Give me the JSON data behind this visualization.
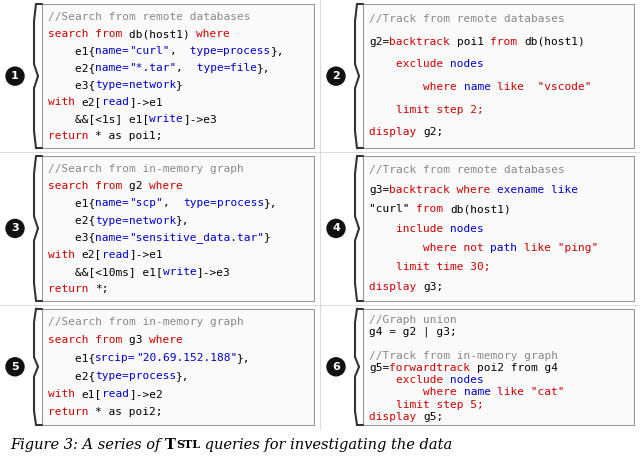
{
  "bg_color": "#ffffff",
  "figsize": [
    6.4,
    4.57
  ],
  "dpi": 100,
  "panels": [
    {
      "id": "1",
      "col": 0,
      "row": 0,
      "lines": [
        [
          {
            "t": "//Search from remote databases",
            "c": "#888888"
          }
        ],
        [
          {
            "t": "search from ",
            "c": "#cc0000"
          },
          {
            "t": "db(host1) ",
            "c": "#000000"
          },
          {
            "t": "where",
            "c": "#cc0000"
          }
        ],
        [
          {
            "t": "    e1{",
            "c": "#000000"
          },
          {
            "t": "name=",
            "c": "#0000cc"
          },
          {
            "t": "\"curl\"",
            "c": "#0000cc"
          },
          {
            "t": ", ",
            "c": "#000000"
          },
          {
            "t": " type=",
            "c": "#0000cc"
          },
          {
            "t": "process",
            "c": "#0000cc"
          },
          {
            "t": "},",
            "c": "#000000"
          }
        ],
        [
          {
            "t": "    e2{",
            "c": "#000000"
          },
          {
            "t": "name=",
            "c": "#0000cc"
          },
          {
            "t": "\"*.tar\"",
            "c": "#0000cc"
          },
          {
            "t": ", ",
            "c": "#000000"
          },
          {
            "t": " type=",
            "c": "#0000cc"
          },
          {
            "t": "file",
            "c": "#0000cc"
          },
          {
            "t": "},",
            "c": "#000000"
          }
        ],
        [
          {
            "t": "    e3{",
            "c": "#000000"
          },
          {
            "t": "type=",
            "c": "#0000cc"
          },
          {
            "t": "network",
            "c": "#0000cc"
          },
          {
            "t": "}",
            "c": "#000000"
          }
        ],
        [
          {
            "t": "with ",
            "c": "#cc0000"
          },
          {
            "t": "e2[",
            "c": "#000000"
          },
          {
            "t": "read",
            "c": "#0000cc"
          },
          {
            "t": "]->e1",
            "c": "#000000"
          }
        ],
        [
          {
            "t": "    &&[<1s] e1[",
            "c": "#000000"
          },
          {
            "t": "write",
            "c": "#0000cc"
          },
          {
            "t": "]->e3",
            "c": "#000000"
          }
        ],
        [
          {
            "t": "return ",
            "c": "#cc0000"
          },
          {
            "t": "* as poi1;",
            "c": "#000000"
          }
        ]
      ]
    },
    {
      "id": "2",
      "col": 1,
      "row": 0,
      "lines": [
        [
          {
            "t": "//Track from remote databases",
            "c": "#888888"
          }
        ],
        [
          {
            "t": "g2=",
            "c": "#000000"
          },
          {
            "t": "backtrack ",
            "c": "#cc0000"
          },
          {
            "t": "poi1 ",
            "c": "#000000"
          },
          {
            "t": "from ",
            "c": "#cc0000"
          },
          {
            "t": "db(host1)",
            "c": "#000000"
          }
        ],
        [
          {
            "t": "    ",
            "c": "#000000"
          },
          {
            "t": "exclude ",
            "c": "#cc0000"
          },
          {
            "t": "nodes",
            "c": "#0000cc"
          }
        ],
        [
          {
            "t": "        ",
            "c": "#000000"
          },
          {
            "t": "where ",
            "c": "#cc0000"
          },
          {
            "t": "name ",
            "c": "#0000cc"
          },
          {
            "t": "like  \"vscode\"",
            "c": "#cc0000"
          }
        ],
        [
          {
            "t": "    ",
            "c": "#000000"
          },
          {
            "t": "limit step 2;",
            "c": "#cc0000"
          }
        ],
        [
          {
            "t": "display ",
            "c": "#cc0000"
          },
          {
            "t": "g2;",
            "c": "#000000"
          }
        ]
      ]
    },
    {
      "id": "3",
      "col": 0,
      "row": 1,
      "lines": [
        [
          {
            "t": "//Search from in-memory graph",
            "c": "#888888"
          }
        ],
        [
          {
            "t": "search from ",
            "c": "#cc0000"
          },
          {
            "t": "g2 ",
            "c": "#000000"
          },
          {
            "t": "where",
            "c": "#cc0000"
          }
        ],
        [
          {
            "t": "    e1{",
            "c": "#000000"
          },
          {
            "t": "name=",
            "c": "#0000cc"
          },
          {
            "t": "\"scp\"",
            "c": "#0000cc"
          },
          {
            "t": ",  ",
            "c": "#000000"
          },
          {
            "t": "type=",
            "c": "#0000cc"
          },
          {
            "t": "process",
            "c": "#0000cc"
          },
          {
            "t": "},",
            "c": "#000000"
          }
        ],
        [
          {
            "t": "    e2{",
            "c": "#000000"
          },
          {
            "t": "type=",
            "c": "#0000cc"
          },
          {
            "t": "network",
            "c": "#0000cc"
          },
          {
            "t": "},",
            "c": "#000000"
          }
        ],
        [
          {
            "t": "    e3{",
            "c": "#000000"
          },
          {
            "t": "name=",
            "c": "#0000cc"
          },
          {
            "t": "\"sensitive_data.tar\"",
            "c": "#0000cc"
          },
          {
            "t": "}",
            "c": "#000000"
          }
        ],
        [
          {
            "t": "with ",
            "c": "#cc0000"
          },
          {
            "t": "e2[",
            "c": "#000000"
          },
          {
            "t": "read",
            "c": "#0000cc"
          },
          {
            "t": "]->e1",
            "c": "#000000"
          }
        ],
        [
          {
            "t": "    &&[<10ms] e1[",
            "c": "#000000"
          },
          {
            "t": "write",
            "c": "#0000cc"
          },
          {
            "t": "]->e3",
            "c": "#000000"
          }
        ],
        [
          {
            "t": "return ",
            "c": "#cc0000"
          },
          {
            "t": "*;",
            "c": "#000000"
          }
        ]
      ]
    },
    {
      "id": "4",
      "col": 1,
      "row": 1,
      "lines": [
        [
          {
            "t": "//Track from remote databases",
            "c": "#888888"
          }
        ],
        [
          {
            "t": "g3=",
            "c": "#000000"
          },
          {
            "t": "backtrack where ",
            "c": "#cc0000"
          },
          {
            "t": "exename like",
            "c": "#0000cc"
          }
        ],
        [
          {
            "t": "\"curl\" ",
            "c": "#000000"
          },
          {
            "t": "from ",
            "c": "#cc0000"
          },
          {
            "t": "db(host1)",
            "c": "#000000"
          }
        ],
        [
          {
            "t": "    ",
            "c": "#000000"
          },
          {
            "t": "include ",
            "c": "#cc0000"
          },
          {
            "t": "nodes",
            "c": "#0000cc"
          }
        ],
        [
          {
            "t": "        ",
            "c": "#000000"
          },
          {
            "t": "where not ",
            "c": "#cc0000"
          },
          {
            "t": "path ",
            "c": "#0000cc"
          },
          {
            "t": "like \"ping\"",
            "c": "#cc0000"
          }
        ],
        [
          {
            "t": "    ",
            "c": "#000000"
          },
          {
            "t": "limit time 30;",
            "c": "#cc0000"
          }
        ],
        [
          {
            "t": "display ",
            "c": "#cc0000"
          },
          {
            "t": "g3;",
            "c": "#000000"
          }
        ]
      ]
    },
    {
      "id": "5",
      "col": 0,
      "row": 2,
      "lines": [
        [
          {
            "t": "//Search from in-memory graph",
            "c": "#888888"
          }
        ],
        [
          {
            "t": "search from ",
            "c": "#cc0000"
          },
          {
            "t": "g3 ",
            "c": "#000000"
          },
          {
            "t": "where",
            "c": "#cc0000"
          }
        ],
        [
          {
            "t": "    e1{",
            "c": "#000000"
          },
          {
            "t": "srcip=",
            "c": "#0000cc"
          },
          {
            "t": "\"20.69.152.188\"",
            "c": "#0000cc"
          },
          {
            "t": "},",
            "c": "#000000"
          }
        ],
        [
          {
            "t": "    e2{",
            "c": "#000000"
          },
          {
            "t": "type=",
            "c": "#0000cc"
          },
          {
            "t": "process",
            "c": "#0000cc"
          },
          {
            "t": "},",
            "c": "#000000"
          }
        ],
        [
          {
            "t": "with ",
            "c": "#cc0000"
          },
          {
            "t": "e1[",
            "c": "#000000"
          },
          {
            "t": "read",
            "c": "#0000cc"
          },
          {
            "t": "]->e2",
            "c": "#000000"
          }
        ],
        [
          {
            "t": "return ",
            "c": "#cc0000"
          },
          {
            "t": "* as poi2;",
            "c": "#000000"
          }
        ]
      ]
    },
    {
      "id": "6",
      "col": 1,
      "row": 2,
      "lines": [
        [
          {
            "t": "//Graph union",
            "c": "#888888"
          }
        ],
        [
          {
            "t": "g4 = g2 | g3;",
            "c": "#000000"
          }
        ],
        [
          {
            "t": "",
            "c": "#000000"
          }
        ],
        [
          {
            "t": "//Track from in-memory graph",
            "c": "#888888"
          }
        ],
        [
          {
            "t": "g5=",
            "c": "#000000"
          },
          {
            "t": "forwardtrack ",
            "c": "#cc0000"
          },
          {
            "t": "poi2 from g4",
            "c": "#000000"
          }
        ],
        [
          {
            "t": "    ",
            "c": "#000000"
          },
          {
            "t": "exclude ",
            "c": "#cc0000"
          },
          {
            "t": "nodes",
            "c": "#0000cc"
          }
        ],
        [
          {
            "t": "        ",
            "c": "#000000"
          },
          {
            "t": "where ",
            "c": "#cc0000"
          },
          {
            "t": "name ",
            "c": "#0000cc"
          },
          {
            "t": "like \"cat\"",
            "c": "#cc0000"
          }
        ],
        [
          {
            "t": "    ",
            "c": "#000000"
          },
          {
            "t": "limit step 5;",
            "c": "#cc0000"
          }
        ],
        [
          {
            "t": "display ",
            "c": "#cc0000"
          },
          {
            "t": "g5;",
            "c": "#000000"
          }
        ]
      ]
    }
  ],
  "font_size": 8.0,
  "caption_fontsize": 10.5
}
